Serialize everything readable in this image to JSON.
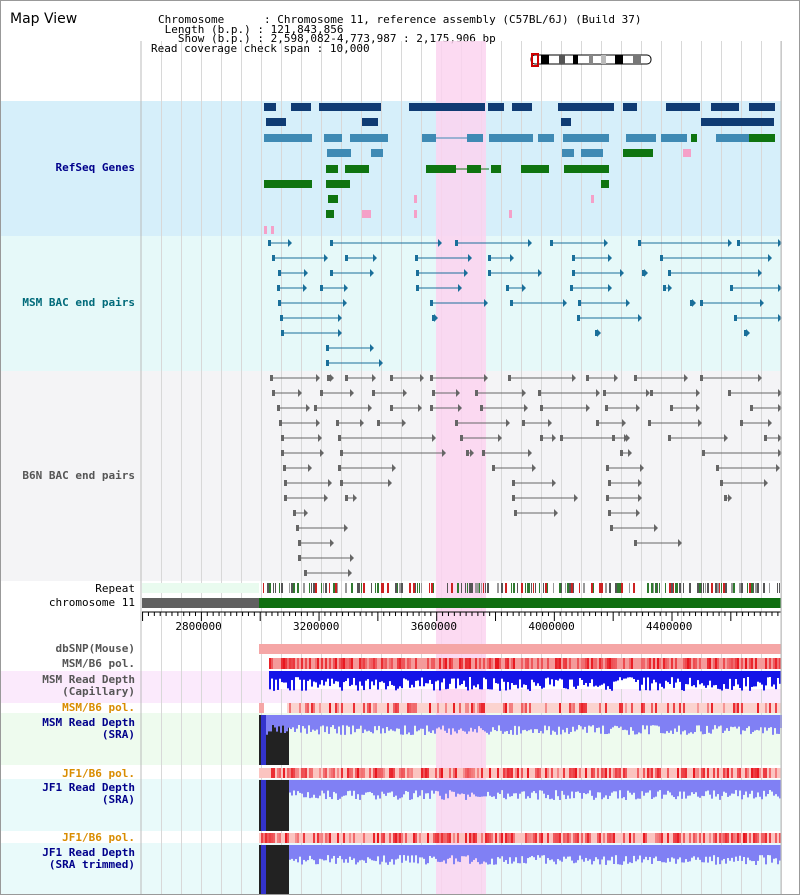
{
  "title": "Map View",
  "info": {
    "chromosome_key": "Chromosome",
    "chromosome_val": "Chromosome 11, reference assembly (C57BL/6J) (Build 37)",
    "length_key": "Length (b.p.)",
    "length_val": "121,843,856",
    "show_key": "Show (b.p.)",
    "show_val": "2,598,082-4,773,987 : 2,175,906 bp",
    "coverage_key": "Read coverage check span",
    "coverage_val": "10,000"
  },
  "tracks": {
    "refseq": "RefSeq Genes",
    "msm_bac": "MSM BAC end pairs",
    "b6n_bac": "B6N BAC end pairs",
    "repeat": "Repeat",
    "chromosome": "chromosome 11",
    "dbsnp": "dbSNP(Mouse)",
    "msm_b6_pol": "MSM/B6 pol.",
    "msm_depth_cap_1": "MSM Read Depth",
    "msm_depth_cap_2": "(Capillary)",
    "msm_b6_pol_2": "MSM/B6 pol.",
    "msm_depth_sra_1": "MSM Read Depth",
    "msm_depth_sra_2": "(SRA)",
    "jf1_b6_pol": "JF1/B6 pol.",
    "jf1_depth_sra_1": "JF1 Read Depth",
    "jf1_depth_sra_2": "(SRA)",
    "jf1_b6_pol_2": "JF1/B6 pol.",
    "jf1_depth_trim_1": "JF1 Read Depth",
    "jf1_depth_trim_2": "(SRA trimmed)"
  },
  "axis": {
    "start": 2598082,
    "end": 4773987,
    "ticks": [
      "2800000",
      "3200000",
      "3600000",
      "4000000",
      "4400000"
    ]
  },
  "colors": {
    "refseq_bg": "#d6effa",
    "msm_bg": "#e6f9f9",
    "b6n_bg": "#f4f4f6",
    "highlight": "#fbd3f0",
    "gene_dark": "#0f3b73",
    "gene_mid": "#3f8ab4",
    "gene_green": "#0f7410",
    "gene_pink": "#f5a0c8",
    "bac_msm": "#1a6f9a",
    "bac_b6n": "#666666",
    "label_navy": "#00008b",
    "label_teal": "#006a7a",
    "label_orange": "#d98c00",
    "label_gray": "#555555"
  }
}
